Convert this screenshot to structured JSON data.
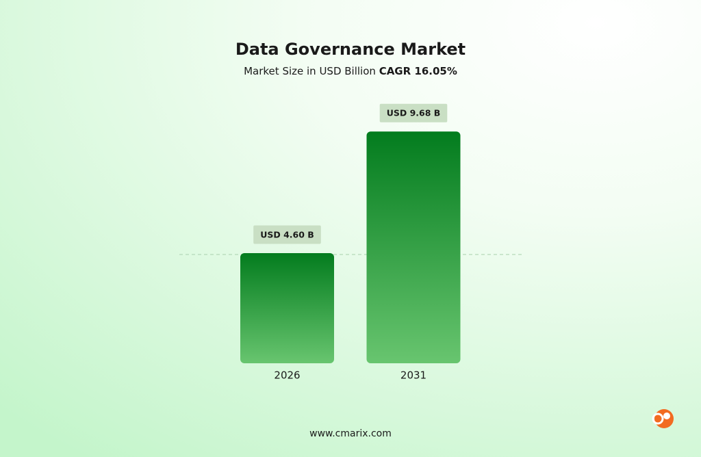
{
  "chart_data": {
    "type": "bar",
    "title": "Data Governance Market",
    "subtitle": "Market Size in USD Billion",
    "cagr": "CAGR 16.05%",
    "categories": [
      "2026",
      "2031"
    ],
    "values": [
      4.6,
      9.68
    ],
    "value_labels": [
      "USD 4.60 B",
      "USD 9.68 B"
    ],
    "footer": "www.cmarix.com"
  }
}
